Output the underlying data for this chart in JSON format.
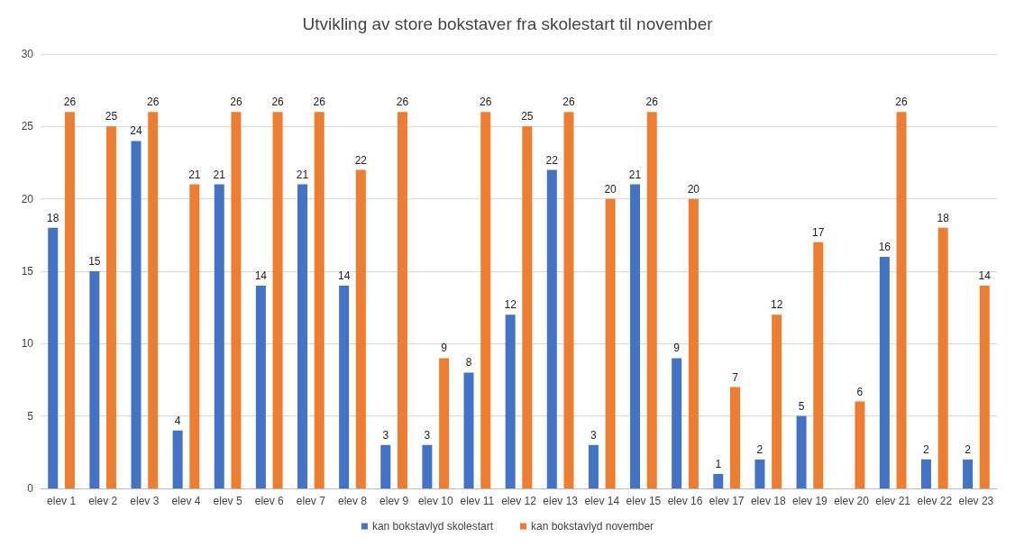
{
  "chart_data": {
    "type": "bar",
    "title": "Utvikling av store bokstaver fra skolestart til november",
    "categories": [
      "elev 1",
      "elev 2",
      "elev 3",
      "elev 4",
      "elev 5",
      "elev 6",
      "elev 7",
      "elev 8",
      "elev 9",
      "elev 10",
      "elev 11",
      "elev 12",
      "elev 13",
      "elev 14",
      "elev 15",
      "elev 16",
      "elev 17",
      "elev 18",
      "elev 19",
      "elev 20",
      "elev 21",
      "elev 22",
      "elev 23"
    ],
    "series": [
      {
        "name": "kan bokstavlyd skolestart",
        "color": "#4472c4",
        "values": [
          18,
          15,
          24,
          4,
          21,
          14,
          21,
          14,
          3,
          3,
          8,
          12,
          22,
          3,
          21,
          9,
          1,
          2,
          5,
          null,
          16,
          2,
          2
        ]
      },
      {
        "name": "kan bokstavlyd november",
        "color": "#ed7d31",
        "values": [
          26,
          25,
          26,
          21,
          26,
          26,
          26,
          22,
          26,
          9,
          26,
          25,
          26,
          20,
          26,
          20,
          7,
          12,
          17,
          6,
          26,
          18,
          14
        ]
      }
    ],
    "ylim": [
      0,
      30
    ],
    "yticks": [
      0,
      5,
      10,
      15,
      20,
      25,
      30
    ],
    "grid": "y",
    "legend": "bottom",
    "data_labels": true
  }
}
